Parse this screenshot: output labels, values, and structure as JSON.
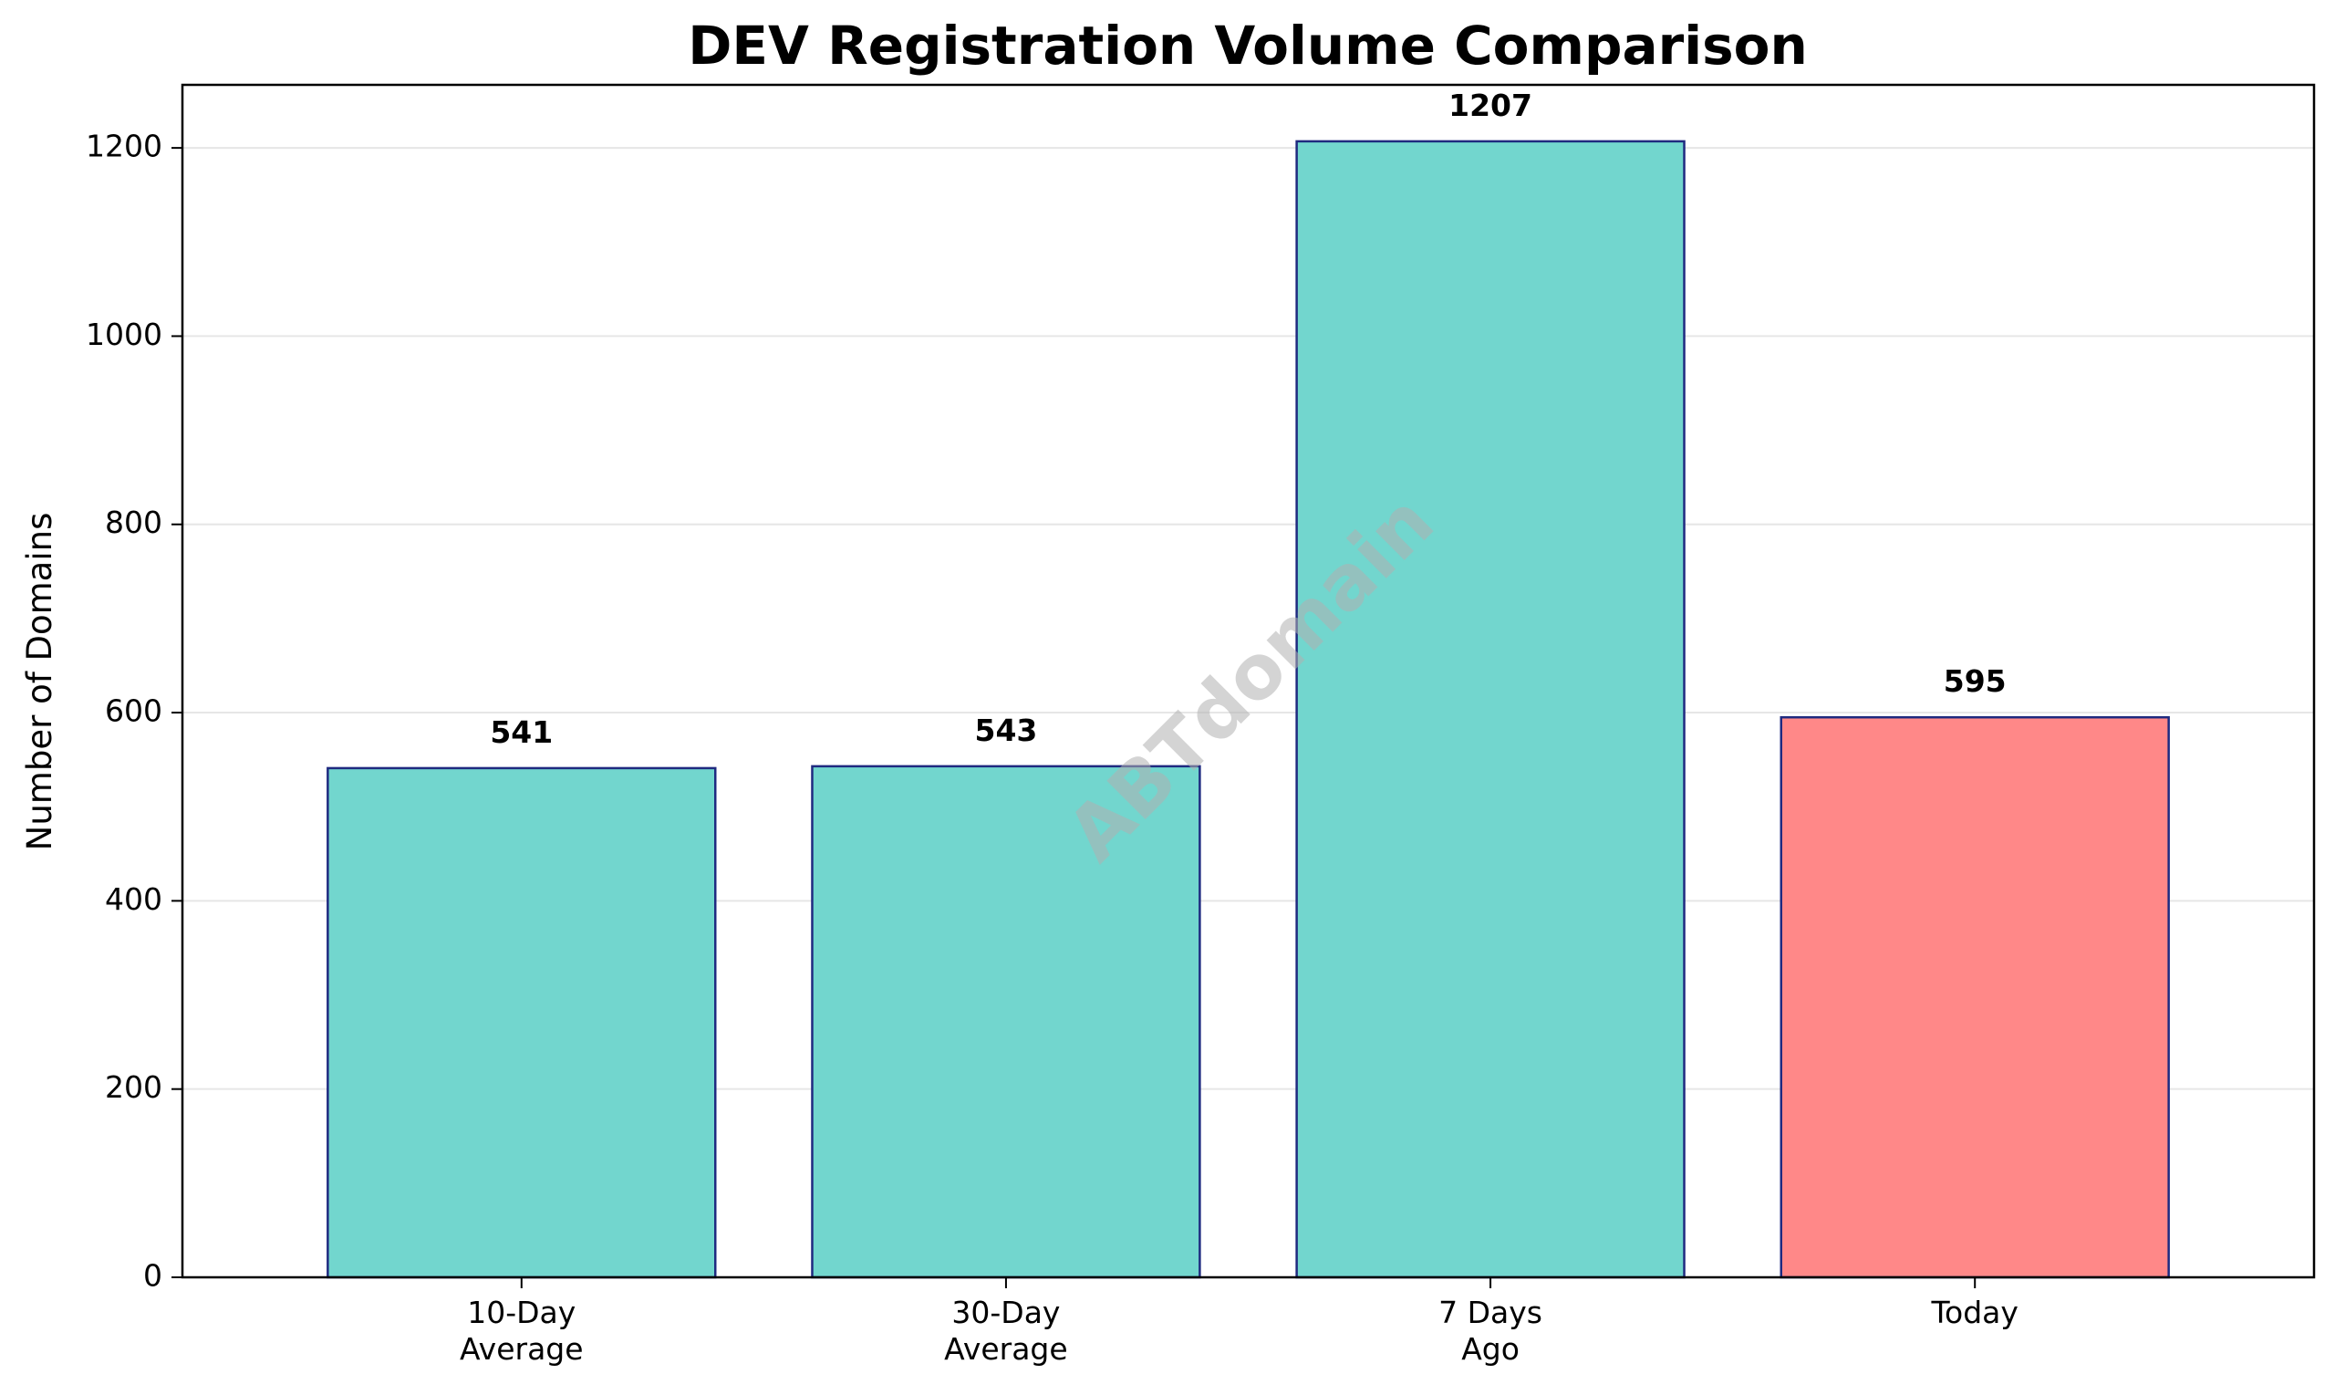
{
  "chart_data": {
    "type": "bar",
    "title": "DEV Registration Volume Comparison",
    "xlabel": "",
    "ylabel": "Number of Domains",
    "categories": [
      [
        "10-Day",
        "Average"
      ],
      [
        "30-Day",
        "Average"
      ],
      [
        "7 Days",
        "Ago"
      ],
      [
        "Today"
      ]
    ],
    "values": [
      541,
      543,
      1207,
      595
    ],
    "value_labels": [
      "541",
      "543",
      "1207",
      "595"
    ],
    "bar_colors": [
      "#72d6ce",
      "#72d6ce",
      "#72d6ce",
      "#ff8888"
    ],
    "bar_edge_color": "#1f2a80",
    "ylim": [
      0,
      1267
    ],
    "yticks": [
      0,
      200,
      400,
      600,
      800,
      1000,
      1200
    ],
    "grid": "y-major",
    "grid_color": "#e6e6e6",
    "legend": "none"
  },
  "watermark": {
    "text": "ABTdomain",
    "color": "#b0b0b0"
  }
}
